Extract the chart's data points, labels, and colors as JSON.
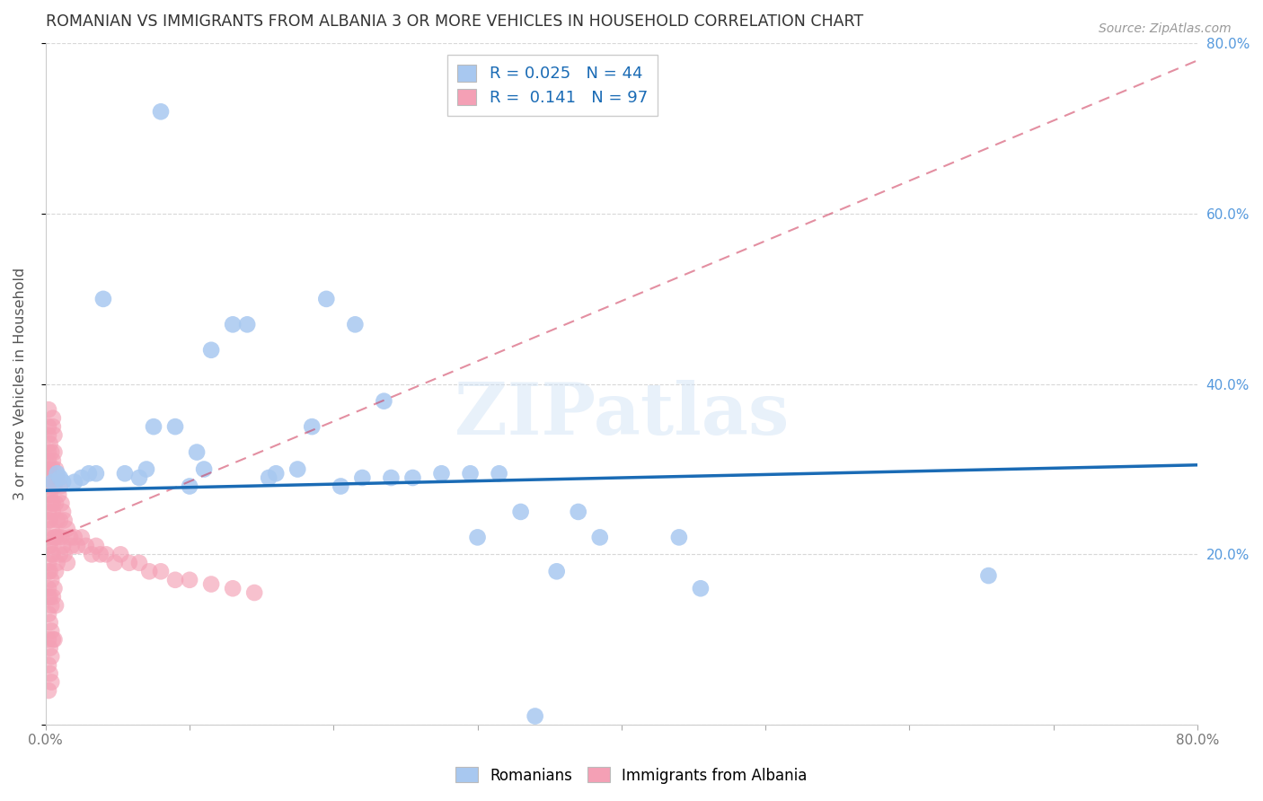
{
  "title": "ROMANIAN VS IMMIGRANTS FROM ALBANIA 3 OR MORE VEHICLES IN HOUSEHOLD CORRELATION CHART",
  "source": "Source: ZipAtlas.com",
  "ylabel": "3 or more Vehicles in Household",
  "xlim": [
    0.0,
    0.8
  ],
  "ylim": [
    0.0,
    0.8
  ],
  "blue_R": 0.025,
  "blue_N": 44,
  "pink_R": 0.141,
  "pink_N": 97,
  "blue_color": "#a8c8f0",
  "pink_color": "#f4a0b5",
  "blue_line_color": "#1a6bb5",
  "pink_line_color": "#cc3355",
  "watermark": "ZIPatlas",
  "blue_line_x0": 0.0,
  "blue_line_x1": 0.8,
  "blue_line_y0": 0.275,
  "blue_line_y1": 0.305,
  "pink_line_x0": 0.0,
  "pink_line_x1": 0.8,
  "pink_line_y0": 0.215,
  "pink_line_y1": 0.78,
  "blue_scatter_x": [
    0.005,
    0.008,
    0.01,
    0.012,
    0.02,
    0.025,
    0.03,
    0.035,
    0.04,
    0.055,
    0.065,
    0.07,
    0.075,
    0.08,
    0.09,
    0.1,
    0.105,
    0.11,
    0.115,
    0.13,
    0.14,
    0.155,
    0.16,
    0.175,
    0.185,
    0.195,
    0.205,
    0.215,
    0.22,
    0.235,
    0.24,
    0.255,
    0.275,
    0.295,
    0.3,
    0.315,
    0.33,
    0.355,
    0.37,
    0.385,
    0.44,
    0.455,
    0.655,
    0.34
  ],
  "blue_scatter_y": [
    0.285,
    0.295,
    0.29,
    0.285,
    0.285,
    0.29,
    0.295,
    0.295,
    0.5,
    0.295,
    0.29,
    0.3,
    0.35,
    0.72,
    0.35,
    0.28,
    0.32,
    0.3,
    0.44,
    0.47,
    0.47,
    0.29,
    0.295,
    0.3,
    0.35,
    0.5,
    0.28,
    0.47,
    0.29,
    0.38,
    0.29,
    0.29,
    0.295,
    0.295,
    0.22,
    0.295,
    0.25,
    0.18,
    0.25,
    0.22,
    0.22,
    0.16,
    0.175,
    0.01
  ],
  "pink_scatter_x": [
    0.002,
    0.002,
    0.002,
    0.002,
    0.002,
    0.002,
    0.002,
    0.002,
    0.002,
    0.002,
    0.002,
    0.002,
    0.002,
    0.002,
    0.002,
    0.002,
    0.002,
    0.002,
    0.002,
    0.002,
    0.003,
    0.003,
    0.003,
    0.003,
    0.003,
    0.003,
    0.003,
    0.003,
    0.003,
    0.003,
    0.004,
    0.004,
    0.004,
    0.004,
    0.004,
    0.004,
    0.004,
    0.004,
    0.004,
    0.004,
    0.005,
    0.005,
    0.005,
    0.005,
    0.005,
    0.005,
    0.005,
    0.005,
    0.005,
    0.006,
    0.006,
    0.006,
    0.006,
    0.006,
    0.006,
    0.007,
    0.007,
    0.007,
    0.007,
    0.007,
    0.008,
    0.008,
    0.008,
    0.009,
    0.009,
    0.01,
    0.01,
    0.01,
    0.011,
    0.011,
    0.012,
    0.012,
    0.013,
    0.013,
    0.015,
    0.015,
    0.017,
    0.018,
    0.02,
    0.022,
    0.025,
    0.028,
    0.032,
    0.035,
    0.038,
    0.042,
    0.048,
    0.052,
    0.058,
    0.065,
    0.072,
    0.08,
    0.09,
    0.1,
    0.115,
    0.13,
    0.145
  ],
  "pink_scatter_y": [
    0.34,
    0.31,
    0.28,
    0.25,
    0.22,
    0.19,
    0.16,
    0.13,
    0.1,
    0.07,
    0.04,
    0.37,
    0.35,
    0.32,
    0.3,
    0.27,
    0.24,
    0.21,
    0.18,
    0.15,
    0.33,
    0.3,
    0.27,
    0.24,
    0.21,
    0.18,
    0.15,
    0.12,
    0.09,
    0.06,
    0.32,
    0.29,
    0.26,
    0.23,
    0.2,
    0.17,
    0.14,
    0.11,
    0.08,
    0.05,
    0.35,
    0.3,
    0.25,
    0.2,
    0.15,
    0.1,
    0.36,
    0.31,
    0.26,
    0.34,
    0.28,
    0.22,
    0.16,
    0.1,
    0.32,
    0.3,
    0.26,
    0.22,
    0.18,
    0.14,
    0.29,
    0.24,
    0.19,
    0.27,
    0.22,
    0.28,
    0.24,
    0.2,
    0.26,
    0.22,
    0.25,
    0.21,
    0.24,
    0.2,
    0.23,
    0.19,
    0.22,
    0.21,
    0.22,
    0.21,
    0.22,
    0.21,
    0.2,
    0.21,
    0.2,
    0.2,
    0.19,
    0.2,
    0.19,
    0.19,
    0.18,
    0.18,
    0.17,
    0.17,
    0.165,
    0.16,
    0.155
  ],
  "grid_color": "#d8d8d8",
  "title_color": "#333333",
  "axis_label_color": "#555555",
  "tick_label_color_right": "#5599dd",
  "tick_label_color_bottom": "#777777",
  "background_color": "#ffffff"
}
